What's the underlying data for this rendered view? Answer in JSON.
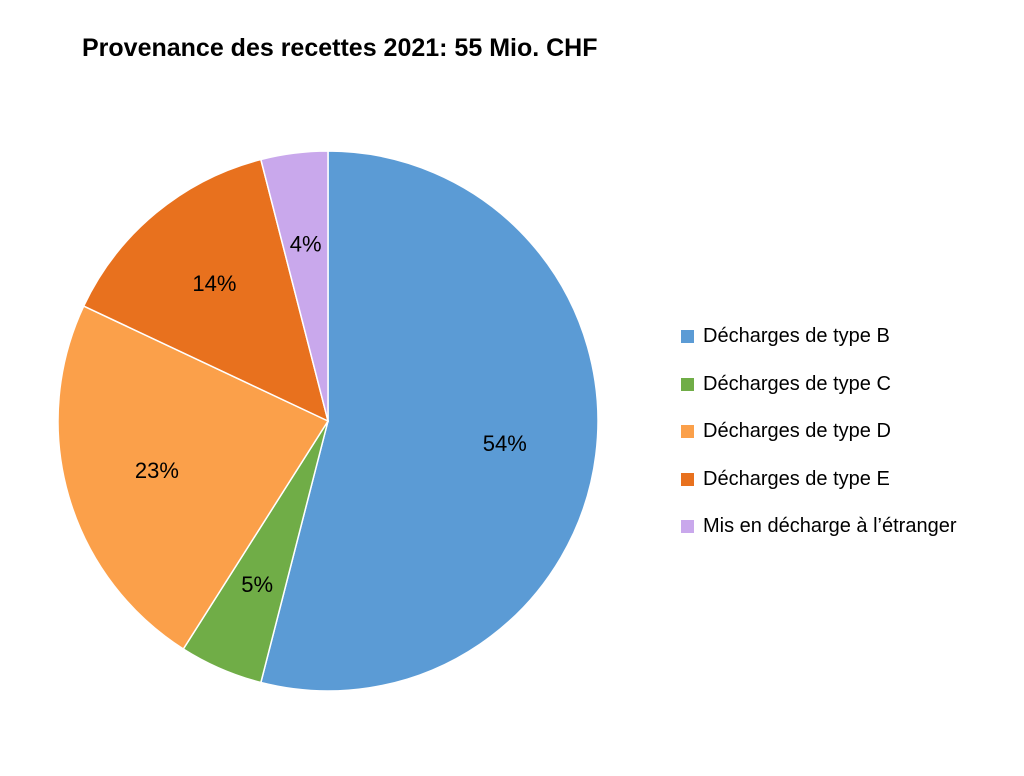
{
  "chart_data": {
    "type": "pie",
    "title": "Provenance des recettes 2021: 55 Mio. CHF",
    "legend_position": "right",
    "slices": [
      {
        "label": "Décharges de type B",
        "value": 54,
        "value_label": "54%",
        "color": "#5B9BD5"
      },
      {
        "label": "Décharges de type C",
        "value": 5,
        "value_label": "5%",
        "color": "#70AD47"
      },
      {
        "label": "Décharges de type D",
        "value": 23,
        "value_label": "23%",
        "color": "#FBA04A"
      },
      {
        "label": "Décharges de type E",
        "value": 14,
        "value_label": "14%",
        "color": "#E8711E"
      },
      {
        "label": "Mis en décharge à l’étranger",
        "value": 4,
        "value_label": "4%",
        "color": "#C9A8EC"
      }
    ]
  }
}
